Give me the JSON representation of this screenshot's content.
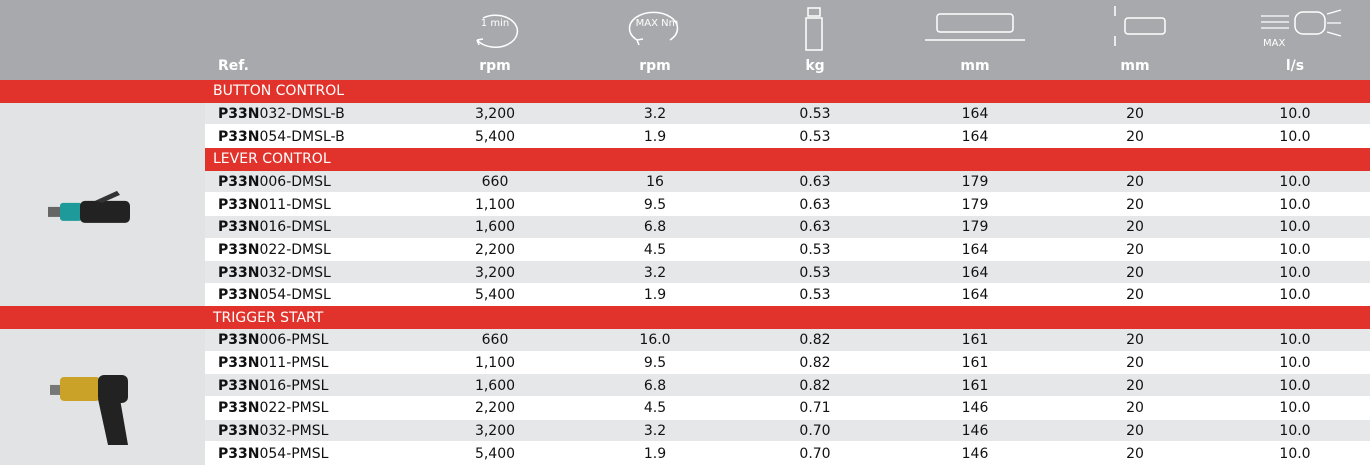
{
  "header": {
    "ref": "Ref.",
    "columns": [
      {
        "icon_label": "1 min",
        "unit": "rpm"
      },
      {
        "icon_label": "MAX Nm",
        "unit": "rpm"
      },
      {
        "unit": "kg"
      },
      {
        "unit": "mm"
      },
      {
        "unit": "mm"
      },
      {
        "icon_label": "MAX",
        "unit": "l/s"
      }
    ]
  },
  "sections": [
    {
      "title": "BUTTON CONTROL",
      "rows": [
        {
          "prefix": "P33N",
          "ref": "032-DMSL-B",
          "values": [
            "3,200",
            "3.2",
            "0.53",
            "164",
            "20",
            "10.0"
          ]
        },
        {
          "prefix": "P33N",
          "ref": "054-DMSL-B",
          "values": [
            "5,400",
            "1.9",
            "0.53",
            "164",
            "20",
            "10.0"
          ]
        }
      ]
    },
    {
      "title": "LEVER CONTROL",
      "rows": [
        {
          "prefix": "P33N",
          "ref": "006-DMSL",
          "values": [
            "660",
            "16",
            "0.63",
            "179",
            "20",
            "10.0"
          ]
        },
        {
          "prefix": "P33N",
          "ref": "011-DMSL",
          "values": [
            "1,100",
            "9.5",
            "0.63",
            "179",
            "20",
            "10.0"
          ]
        },
        {
          "prefix": "P33N",
          "ref": "016-DMSL",
          "values": [
            "1,600",
            "6.8",
            "0.63",
            "179",
            "20",
            "10.0"
          ]
        },
        {
          "prefix": "P33N",
          "ref": "022-DMSL",
          "values": [
            "2,200",
            "4.5",
            "0.53",
            "164",
            "20",
            "10.0"
          ]
        },
        {
          "prefix": "P33N",
          "ref": "032-DMSL",
          "values": [
            "3,200",
            "3.2",
            "0.53",
            "164",
            "20",
            "10.0"
          ]
        },
        {
          "prefix": "P33N",
          "ref": "054-DMSL",
          "values": [
            "5,400",
            "1.9",
            "0.53",
            "164",
            "20",
            "10.0"
          ]
        }
      ]
    },
    {
      "title": "TRIGGER START",
      "rows": [
        {
          "prefix": "P33N",
          "ref": "006-PMSL",
          "values": [
            "660",
            "16.0",
            "0.82",
            "161",
            "20",
            "10.0"
          ]
        },
        {
          "prefix": "P33N",
          "ref": "011-PMSL",
          "values": [
            "1,100",
            "9.5",
            "0.82",
            "161",
            "20",
            "10.0"
          ]
        },
        {
          "prefix": "P33N",
          "ref": "016-PMSL",
          "values": [
            "1,600",
            "6.8",
            "0.82",
            "161",
            "20",
            "10.0"
          ]
        },
        {
          "prefix": "P33N",
          "ref": "022-PMSL",
          "values": [
            "2,200",
            "4.5",
            "0.71",
            "146",
            "20",
            "10.0"
          ]
        },
        {
          "prefix": "P33N",
          "ref": "032-PMSL",
          "values": [
            "3,200",
            "3.2",
            "0.70",
            "146",
            "20",
            "10.0"
          ]
        },
        {
          "prefix": "P33N",
          "ref": "054-PMSL",
          "values": [
            "5,400",
            "1.9",
            "0.70",
            "146",
            "20",
            "10.0"
          ]
        }
      ]
    }
  ]
}
